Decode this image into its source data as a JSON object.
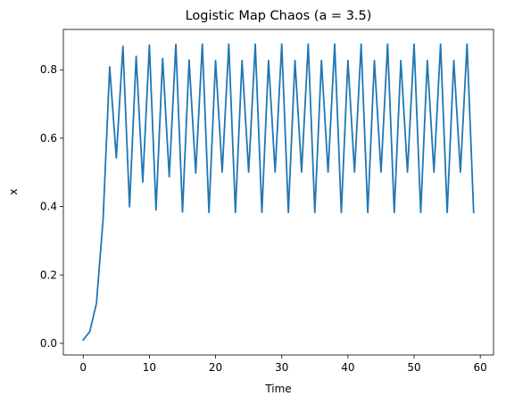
{
  "chart_data": {
    "type": "line",
    "title": "Logistic Map Chaos (a = 3.5)",
    "xlabel": "Time",
    "ylabel": "x",
    "xlim": [
      -3,
      62
    ],
    "ylim": [
      -0.034,
      0.918
    ],
    "xticks": [
      0,
      10,
      20,
      30,
      40,
      50,
      60
    ],
    "yticks": [
      0.0,
      0.2,
      0.4,
      0.6,
      0.8
    ],
    "ytick_labels": [
      "0.0",
      "0.2",
      "0.4",
      "0.6",
      "0.8"
    ],
    "grid": false,
    "line_color": "#1f77b4",
    "series": [
      {
        "x": [
          0,
          1,
          2,
          3,
          4,
          5,
          6,
          7,
          8,
          9,
          10,
          11,
          12,
          13,
          14,
          15,
          16,
          17,
          18,
          19,
          20,
          21,
          22,
          23,
          24,
          25,
          26,
          27,
          28,
          29,
          30,
          31,
          32,
          33,
          34,
          35,
          36,
          37,
          38,
          39,
          40,
          41,
          42,
          43,
          44,
          45,
          46,
          47,
          48,
          49,
          50,
          51,
          52,
          53,
          54,
          55,
          56,
          57,
          58,
          59
        ],
        "values": [
          0.01,
          0.03465,
          0.11711,
          0.36189,
          0.80825,
          0.54245,
          0.86869,
          0.39926,
          0.83946,
          0.47167,
          0.87219,
          0.39016,
          0.83277,
          0.48743,
          0.87445,
          0.38426,
          0.82811,
          0.4982,
          0.875,
          0.38282,
          0.82694,
          0.50086,
          0.87499,
          0.38284,
          0.82696,
          0.50082,
          0.87499,
          0.38284,
          0.82697,
          0.50084,
          0.875,
          0.38282,
          0.82694,
          0.50087,
          0.875,
          0.38282,
          0.82694,
          0.50087,
          0.875,
          0.38282,
          0.82694,
          0.50087,
          0.875,
          0.38282,
          0.82694,
          0.50087,
          0.875,
          0.38282,
          0.82694,
          0.50087,
          0.875,
          0.38282,
          0.82694,
          0.50087,
          0.875,
          0.38282,
          0.82694,
          0.50087,
          0.875,
          0.38282
        ]
      }
    ]
  }
}
